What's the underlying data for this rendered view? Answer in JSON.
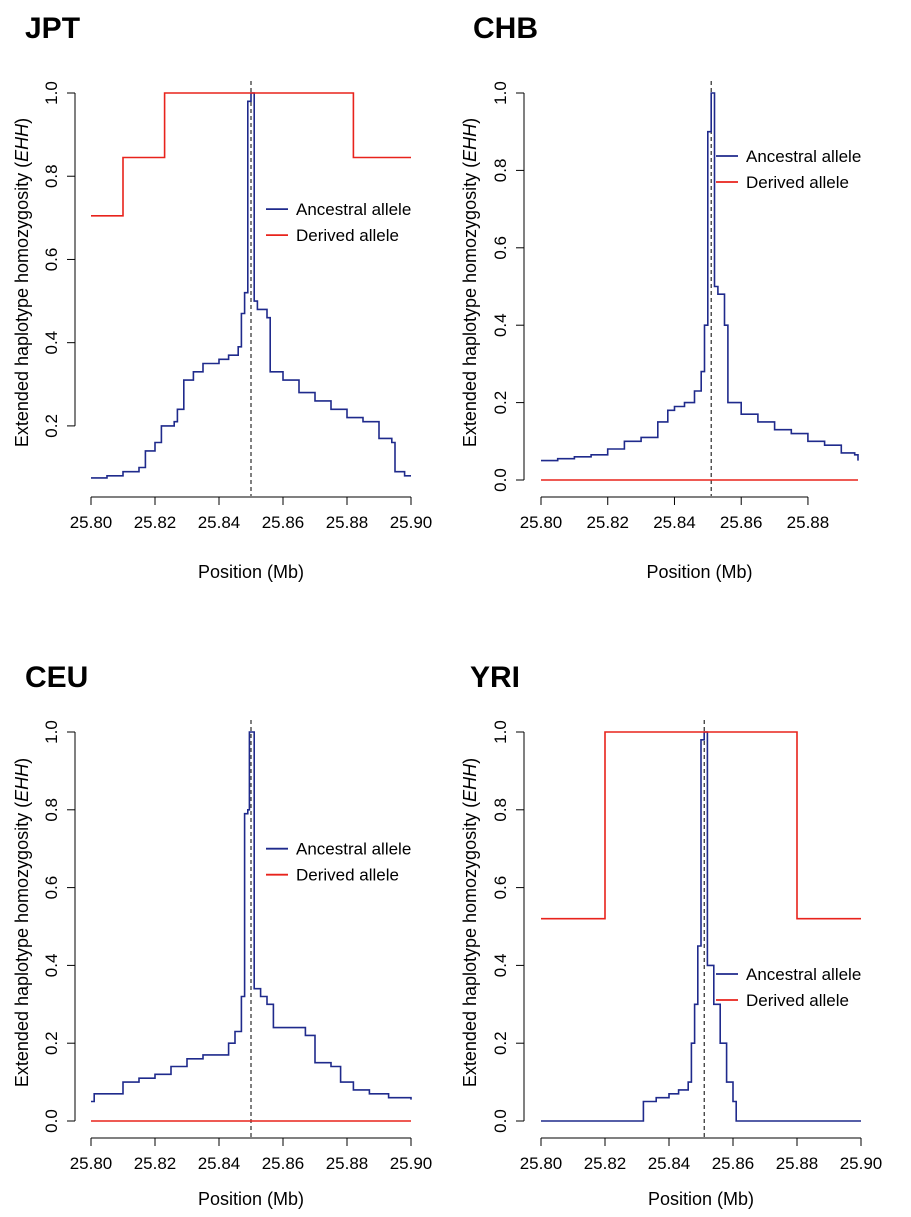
{
  "colors": {
    "ancestral": "#1f2a8c",
    "derived": "#e8231c",
    "axis": "#000000"
  },
  "chart_data": [
    {
      "panel": "JPT",
      "type": "line",
      "title": "JPT",
      "xlabel": "Position (Mb)",
      "ylabel_main": "Extended haplotype homozygosity (",
      "ylabel_italic": "EHH",
      "ylabel_close": ")",
      "xlim": [
        25.8,
        25.9
      ],
      "ylim": [
        0.07,
        1.0
      ],
      "xticks": [
        25.8,
        25.82,
        25.84,
        25.86,
        25.88,
        25.9
      ],
      "xtick_labels": [
        "25.80",
        "25.82",
        "25.84",
        "25.86",
        "25.88",
        "25.90"
      ],
      "yticks": [
        0.2,
        0.4,
        0.6,
        0.8,
        1.0
      ],
      "ytick_labels": [
        "0.2",
        "0.4",
        "0.6",
        "0.8",
        "1.0"
      ],
      "core_snp": 25.85,
      "legend": {
        "position": "right-middle",
        "entries": [
          "Ancestral allele",
          "Derived allele"
        ]
      },
      "series": [
        {
          "name": "Ancestral allele",
          "color_key": "ancestral",
          "points": [
            [
              25.8,
              0.075
            ],
            [
              25.805,
              0.08
            ],
            [
              25.81,
              0.09
            ],
            [
              25.815,
              0.1
            ],
            [
              25.817,
              0.14
            ],
            [
              25.82,
              0.16
            ],
            [
              25.822,
              0.2
            ],
            [
              25.826,
              0.21
            ],
            [
              25.827,
              0.24
            ],
            [
              25.829,
              0.31
            ],
            [
              25.832,
              0.33
            ],
            [
              25.835,
              0.35
            ],
            [
              25.84,
              0.36
            ],
            [
              25.843,
              0.37
            ],
            [
              25.846,
              0.39
            ],
            [
              25.847,
              0.47
            ],
            [
              25.848,
              0.52
            ],
            [
              25.849,
              0.98
            ],
            [
              25.85,
              1.0
            ],
            [
              25.851,
              0.5
            ],
            [
              25.852,
              0.48
            ],
            [
              25.855,
              0.46
            ],
            [
              25.856,
              0.33
            ],
            [
              25.86,
              0.31
            ],
            [
              25.865,
              0.28
            ],
            [
              25.87,
              0.26
            ],
            [
              25.875,
              0.24
            ],
            [
              25.88,
              0.22
            ],
            [
              25.885,
              0.21
            ],
            [
              25.89,
              0.17
            ],
            [
              25.894,
              0.16
            ],
            [
              25.895,
              0.09
            ],
            [
              25.898,
              0.08
            ],
            [
              25.9,
              0.08
            ]
          ]
        },
        {
          "name": "Derived allele",
          "color_key": "derived",
          "points": [
            [
              25.8,
              0.705
            ],
            [
              25.81,
              0.705
            ],
            [
              25.81,
              0.845
            ],
            [
              25.823,
              0.845
            ],
            [
              25.823,
              1.0
            ],
            [
              25.882,
              1.0
            ],
            [
              25.882,
              0.845
            ],
            [
              25.9,
              0.845
            ]
          ]
        }
      ]
    },
    {
      "panel": "CHB",
      "type": "line",
      "title": "CHB",
      "xlabel": "Position (Mb)",
      "ylabel_main": "Extended haplotype homozygosity (",
      "ylabel_italic": "EHH",
      "ylabel_close": ")",
      "xlim": [
        25.8,
        25.895
      ],
      "ylim": [
        0.0,
        1.0
      ],
      "xticks": [
        25.8,
        25.82,
        25.84,
        25.86,
        25.88
      ],
      "xtick_labels": [
        "25.80",
        "25.82",
        "25.84",
        "25.86",
        "25.88"
      ],
      "yticks": [
        0.0,
        0.2,
        0.4,
        0.6,
        0.8,
        1.0
      ],
      "ytick_labels": [
        "0.0",
        "0.2",
        "0.4",
        "0.6",
        "0.8",
        "1.0"
      ],
      "core_snp": 25.851,
      "legend": {
        "position": "top-right",
        "entries": [
          "Ancestral allele",
          "Derived allele"
        ]
      },
      "series": [
        {
          "name": "Ancestral allele",
          "color_key": "ancestral",
          "points": [
            [
              25.8,
              0.05
            ],
            [
              25.805,
              0.055
            ],
            [
              25.81,
              0.06
            ],
            [
              25.815,
              0.065
            ],
            [
              25.82,
              0.08
            ],
            [
              25.825,
              0.1
            ],
            [
              25.83,
              0.11
            ],
            [
              25.835,
              0.15
            ],
            [
              25.838,
              0.18
            ],
            [
              25.84,
              0.19
            ],
            [
              25.843,
              0.2
            ],
            [
              25.846,
              0.23
            ],
            [
              25.848,
              0.28
            ],
            [
              25.849,
              0.4
            ],
            [
              25.85,
              0.9
            ],
            [
              25.851,
              1.0
            ],
            [
              25.852,
              0.5
            ],
            [
              25.853,
              0.48
            ],
            [
              25.855,
              0.4
            ],
            [
              25.856,
              0.2
            ],
            [
              25.86,
              0.17
            ],
            [
              25.865,
              0.15
            ],
            [
              25.87,
              0.13
            ],
            [
              25.875,
              0.12
            ],
            [
              25.88,
              0.1
            ],
            [
              25.885,
              0.09
            ],
            [
              25.89,
              0.07
            ],
            [
              25.894,
              0.065
            ],
            [
              25.895,
              0.05
            ]
          ]
        },
        {
          "name": "Derived allele",
          "color_key": "derived",
          "points": [
            [
              25.8,
              0.0
            ],
            [
              25.895,
              0.0
            ]
          ]
        }
      ]
    },
    {
      "panel": "CEU",
      "type": "line",
      "title": "CEU",
      "xlabel": "Position (Mb)",
      "ylabel_main": "Extended haplotype homozygosity (",
      "ylabel_italic": "EHH",
      "ylabel_close": ")",
      "xlim": [
        25.8,
        25.9
      ],
      "ylim": [
        0.0,
        1.0
      ],
      "xticks": [
        25.8,
        25.82,
        25.84,
        25.86,
        25.88,
        25.9
      ],
      "xtick_labels": [
        "25.80",
        "25.82",
        "25.84",
        "25.86",
        "25.88",
        "25.90"
      ],
      "yticks": [
        0.0,
        0.2,
        0.4,
        0.6,
        0.8,
        1.0
      ],
      "ytick_labels": [
        "0.0",
        "0.2",
        "0.4",
        "0.6",
        "0.8",
        "1.0"
      ],
      "core_snp": 25.85,
      "legend": {
        "position": "right-middle",
        "entries": [
          "Ancestral allele",
          "Derived allele"
        ]
      },
      "series": [
        {
          "name": "Ancestral allele",
          "color_key": "ancestral",
          "points": [
            [
              25.8,
              0.05
            ],
            [
              25.801,
              0.07
            ],
            [
              25.805,
              0.07
            ],
            [
              25.81,
              0.1
            ],
            [
              25.815,
              0.11
            ],
            [
              25.82,
              0.12
            ],
            [
              25.825,
              0.14
            ],
            [
              25.83,
              0.16
            ],
            [
              25.835,
              0.17
            ],
            [
              25.84,
              0.17
            ],
            [
              25.843,
              0.2
            ],
            [
              25.845,
              0.23
            ],
            [
              25.847,
              0.32
            ],
            [
              25.848,
              0.79
            ],
            [
              25.849,
              0.8
            ],
            [
              25.8495,
              1.0
            ],
            [
              25.8505,
              1.0
            ],
            [
              25.851,
              0.34
            ],
            [
              25.853,
              0.32
            ],
            [
              25.855,
              0.3
            ],
            [
              25.857,
              0.24
            ],
            [
              25.86,
              0.24
            ],
            [
              25.867,
              0.22
            ],
            [
              25.87,
              0.15
            ],
            [
              25.875,
              0.14
            ],
            [
              25.878,
              0.1
            ],
            [
              25.882,
              0.08
            ],
            [
              25.887,
              0.07
            ],
            [
              25.893,
              0.06
            ],
            [
              25.9,
              0.055
            ]
          ]
        },
        {
          "name": "Derived allele",
          "color_key": "derived",
          "points": [
            [
              25.8,
              0.0
            ],
            [
              25.9,
              0.0
            ]
          ]
        }
      ]
    },
    {
      "panel": "YRI",
      "type": "line",
      "title": "YRI",
      "xlabel": "Position (Mb)",
      "ylabel_main": "Extended haplotype homozygosity (",
      "ylabel_italic": "EHH",
      "ylabel_close": ")",
      "xlim": [
        25.8,
        25.9
      ],
      "ylim": [
        0.0,
        1.0
      ],
      "xticks": [
        25.8,
        25.82,
        25.84,
        25.86,
        25.88,
        25.9
      ],
      "xtick_labels": [
        "25.80",
        "25.82",
        "25.84",
        "25.86",
        "25.88",
        "25.90"
      ],
      "yticks": [
        0.0,
        0.2,
        0.4,
        0.6,
        0.8,
        1.0
      ],
      "ytick_labels": [
        "0.0",
        "0.2",
        "0.4",
        "0.6",
        "0.8",
        "1.0"
      ],
      "core_snp": 25.851,
      "legend": {
        "position": "bottom-right",
        "entries": [
          "Ancestral allele",
          "Derived allele"
        ]
      },
      "series": [
        {
          "name": "Ancestral allele",
          "color_key": "ancestral",
          "points": [
            [
              25.8,
              0.0
            ],
            [
              25.831,
              0.0
            ],
            [
              25.832,
              0.05
            ],
            [
              25.836,
              0.06
            ],
            [
              25.84,
              0.07
            ],
            [
              25.843,
              0.08
            ],
            [
              25.846,
              0.1
            ],
            [
              25.847,
              0.2
            ],
            [
              25.848,
              0.3
            ],
            [
              25.849,
              0.45
            ],
            [
              25.85,
              0.98
            ],
            [
              25.851,
              1.0
            ],
            [
              25.852,
              0.4
            ],
            [
              25.854,
              0.3
            ],
            [
              25.856,
              0.2
            ],
            [
              25.858,
              0.1
            ],
            [
              25.86,
              0.05
            ],
            [
              25.861,
              0.0
            ],
            [
              25.9,
              0.0
            ]
          ]
        },
        {
          "name": "Derived allele",
          "color_key": "derived",
          "points": [
            [
              25.8,
              0.52
            ],
            [
              25.82,
              0.52
            ],
            [
              25.82,
              1.0
            ],
            [
              25.88,
              1.0
            ],
            [
              25.88,
              0.52
            ],
            [
              25.9,
              0.52
            ]
          ]
        }
      ]
    }
  ]
}
